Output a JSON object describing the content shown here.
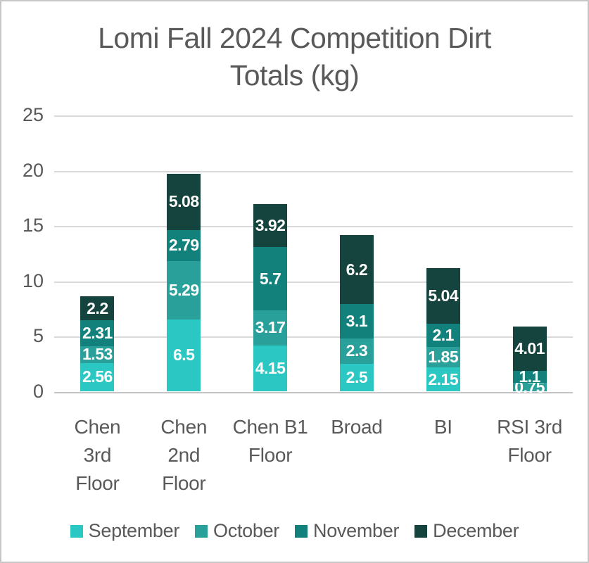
{
  "header": {
    "title": "Lomi Fall 2024 Competition Dirt Totals (kg)",
    "title_lines": [
      "Lomi Fall 2024 Competition Dirt",
      "Totals (kg)"
    ]
  },
  "colors": {
    "september": "#2BC7C3",
    "october": "#2AA09B",
    "november": "#12817C",
    "december": "#15433E",
    "text_gray": "#595959",
    "gridline": "#D9D9D9"
  },
  "chart_data": {
    "type": "bar",
    "stacked": true,
    "title": "Lomi Fall 2024 Competition Dirt Totals (kg)",
    "xlabel": "",
    "ylabel": "",
    "categories": [
      "Chen 3rd Floor",
      "Chen 2nd Floor",
      "Chen B1 Floor",
      "Broad",
      "BI",
      "RSI 3rd Floor"
    ],
    "category_label_lines": [
      [
        "Chen",
        "3rd",
        "Floor"
      ],
      [
        "Chen",
        "2nd",
        "Floor"
      ],
      [
        "Chen B1",
        "Floor"
      ],
      [
        "Broad"
      ],
      [
        "BI"
      ],
      [
        "RSI 3rd",
        "Floor"
      ]
    ],
    "series": [
      {
        "name": "September",
        "color": "#2BC7C3",
        "values": [
          2.56,
          6.5,
          4.15,
          2.5,
          2.15,
          0
        ]
      },
      {
        "name": "October",
        "color": "#2AA09B",
        "values": [
          1.53,
          5.29,
          3.17,
          2.3,
          1.85,
          0.75
        ]
      },
      {
        "name": "November",
        "color": "#12817C",
        "values": [
          2.31,
          2.79,
          5.7,
          3.1,
          2.1,
          1.1
        ]
      },
      {
        "name": "December",
        "color": "#15433E",
        "values": [
          2.2,
          5.08,
          3.92,
          6.2,
          5.04,
          4.01
        ]
      }
    ],
    "stack_totals": [
      8.6,
      19.66,
      16.94,
      14.1,
      11.14,
      5.86
    ],
    "y_ticks": [
      0,
      5,
      10,
      15,
      20,
      25
    ],
    "ylim": [
      0,
      25
    ],
    "grid": true,
    "data_labels": true,
    "legend_position": "bottom"
  }
}
